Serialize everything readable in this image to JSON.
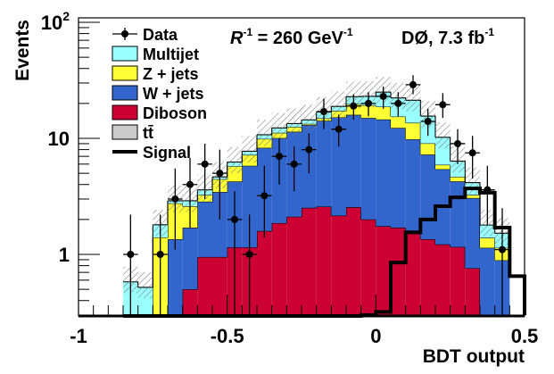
{
  "chart_data": {
    "type": "bar",
    "histogram": "stacked",
    "title": "",
    "annotation_left": {
      "symbol": "R",
      "sup": "-1",
      "text": " = 260 GeV",
      "text_sup": "-1"
    },
    "annotation_right": {
      "text": "DØ, 7.3 fb",
      "sup": "-1"
    },
    "xlabel": "BDT output",
    "ylabel": "Events",
    "xlim": [
      -1,
      0.5
    ],
    "ylim": [
      0.3,
      100
    ],
    "yscale": "log",
    "xticks": [
      "-1",
      "-0.5",
      "0",
      "0.5"
    ],
    "xtick_values": [
      -1,
      -0.5,
      0,
      0.5
    ],
    "yticks": [
      {
        "value": 1,
        "label": "1"
      },
      {
        "value": 10,
        "label": "10"
      },
      {
        "value": 100,
        "label": "10",
        "sup": "2"
      }
    ],
    "legend_placement": "top-left",
    "legend": [
      {
        "name": "Data",
        "style": "marker"
      },
      {
        "name": "Multijet",
        "color": "#99ffff"
      },
      {
        "name": "Z + jets",
        "color": "#ffff33"
      },
      {
        "name": "W + jets",
        "color": "#3366cc"
      },
      {
        "name": "Diboson",
        "color": "#cc0033"
      },
      {
        "name": "tt̄",
        "color": "#cccccc"
      },
      {
        "name": "Signal",
        "style": "line"
      }
    ],
    "bin_edges": [
      -0.85,
      -0.8,
      -0.75,
      -0.7,
      -0.65,
      -0.6,
      -0.55,
      -0.5,
      -0.45,
      -0.4,
      -0.35,
      -0.3,
      -0.25,
      -0.2,
      -0.15,
      -0.1,
      -0.05,
      0.0,
      0.05,
      0.1,
      0.15,
      0.2,
      0.25,
      0.3,
      0.35,
      0.4,
      0.45
    ],
    "series": [
      {
        "name": "tt̄",
        "color": "#cccccc",
        "values": [
          0,
          0,
          0,
          0,
          0,
          0,
          0,
          0,
          0,
          0.04,
          0.01,
          0.01,
          0.27,
          0.13,
          0.06,
          0.2,
          0.1,
          0.05,
          0.1,
          0.06,
          0.05,
          0.02,
          0.01,
          0.01,
          0.01,
          0.01
        ]
      },
      {
        "name": "Diboson",
        "color": "#cc0033",
        "values": [
          0,
          0,
          0,
          0.3,
          0.5,
          0.95,
          0.95,
          1.15,
          1.15,
          1.55,
          1.85,
          2.1,
          2.25,
          2.45,
          2.1,
          2.35,
          1.9,
          1.7,
          1.6,
          1.45,
          1.3,
          1.2,
          1.15,
          0.75,
          0.28,
          0.28
        ]
      },
      {
        "name": "W + jets",
        "color": "#3366cc",
        "values": [
          0,
          0,
          0.3,
          1.05,
          1.2,
          1.9,
          2.5,
          3.1,
          4.65,
          6.7,
          8.2,
          9.3,
          10.5,
          11.6,
          13.0,
          13.4,
          13.0,
          12.8,
          10.6,
          8.3,
          5.9,
          4.2,
          3.1,
          2.3,
          0.85,
          0.6
        ]
      },
      {
        "name": "Z + jets",
        "color": "#ffff33",
        "values": [
          0,
          0.25,
          1.1,
          1.4,
          0.9,
          0.4,
          1.0,
          1.5,
          1.4,
          1.6,
          1.1,
          1.1,
          0.3,
          0.7,
          2.1,
          3.8,
          4.3,
          4.2,
          3.1,
          3.8,
          1.8,
          0.5,
          0.4,
          0.2,
          0.25,
          0.25
        ]
      },
      {
        "name": "Multijet",
        "color": "#99ffff",
        "values": [
          0.58,
          0.27,
          0.4,
          0.15,
          0.3,
          0.35,
          0.2,
          0.5,
          0.55,
          0.85,
          1.15,
          0.9,
          1.1,
          2.0,
          1.6,
          3.1,
          3.7,
          6.3,
          6.9,
          7.7,
          6.5,
          4.3,
          1.7,
          0.9,
          0.4,
          0.38
        ]
      }
    ],
    "signal": {
      "name": "Signal",
      "values": [
        0,
        0,
        0,
        0,
        0,
        0,
        0,
        0,
        0,
        0,
        0,
        0,
        0,
        0,
        0,
        0,
        0.2,
        0.32,
        0.85,
        1.55,
        2.0,
        2.6,
        3.1,
        3.7,
        3.4,
        1.7,
        0.65,
        0.3
      ]
    },
    "signal_bin_edges": [
      -0.85,
      -0.8,
      -0.75,
      -0.7,
      -0.65,
      -0.6,
      -0.55,
      -0.5,
      -0.45,
      -0.4,
      -0.35,
      -0.3,
      -0.25,
      -0.2,
      -0.15,
      -0.1,
      -0.05,
      0.0,
      0.05,
      0.1,
      0.15,
      0.2,
      0.25,
      0.3,
      0.35,
      0.4,
      0.45,
      0.5
    ],
    "data_points": [
      {
        "x": -0.825,
        "y": 1.0,
        "ylo": 0.3,
        "yhi": 2.2
      },
      {
        "x": -0.725,
        "y": 1.0,
        "ylo": 0.3,
        "yhi": 2.2
      },
      {
        "x": -0.675,
        "y": 3.0,
        "ylo": 1.1,
        "yhi": 5.5
      },
      {
        "x": -0.625,
        "y": 4.0,
        "ylo": 1.7,
        "yhi": 6.8
      },
      {
        "x": -0.575,
        "y": 6.0,
        "ylo": 3.0,
        "yhi": 9.0
      },
      {
        "x": -0.525,
        "y": 5.0,
        "ylo": 2.0,
        "yhi": 8.0
      },
      {
        "x": -0.475,
        "y": 2.0,
        "ylo": 0.3,
        "yhi": 3.5
      },
      {
        "x": -0.425,
        "y": 1.0,
        "ylo": 0.3,
        "yhi": 2.2
      },
      {
        "x": -0.375,
        "y": 3.2,
        "ylo": 1.4,
        "yhi": 5.8
      },
      {
        "x": -0.325,
        "y": 7.0,
        "ylo": 4.0,
        "yhi": 10.0
      },
      {
        "x": -0.275,
        "y": 6.0,
        "ylo": 3.5,
        "yhi": 8.5
      },
      {
        "x": -0.225,
        "y": 8.0,
        "ylo": 5.0,
        "yhi": 11.0
      },
      {
        "x": -0.175,
        "y": 17.0,
        "ylo": 12.0,
        "yhi": 22.0
      },
      {
        "x": -0.125,
        "y": 12.0,
        "ylo": 8.5,
        "yhi": 16.0
      },
      {
        "x": -0.075,
        "y": 19.0,
        "ylo": 14.5,
        "yhi": 24.0
      },
      {
        "x": -0.025,
        "y": 20.0,
        "ylo": 15.5,
        "yhi": 25.0
      },
      {
        "x": 0.025,
        "y": 23.0,
        "ylo": 18.0,
        "yhi": 28.0
      },
      {
        "x": 0.075,
        "y": 20.0,
        "ylo": 15.5,
        "yhi": 25.0
      },
      {
        "x": 0.125,
        "y": 29.0,
        "ylo": 24.0,
        "yhi": 35.0
      },
      {
        "x": 0.175,
        "y": 14.0,
        "ylo": 10.5,
        "yhi": 18.0
      },
      {
        "x": 0.225,
        "y": 19.5,
        "ylo": 15.0,
        "yhi": 24.5
      },
      {
        "x": 0.275,
        "y": 9.0,
        "ylo": 6.0,
        "yhi": 12.0
      },
      {
        "x": 0.325,
        "y": 7.5,
        "ylo": 4.5,
        "yhi": 10.5
      },
      {
        "x": 0.375,
        "y": 3.6,
        "ylo": 1.8,
        "yhi": 5.8
      },
      {
        "x": 0.425,
        "y": 1.1,
        "ylo": 0.3,
        "yhi": 2.5
      }
    ],
    "uncertainty_band": {
      "style": "hatched",
      "color": "#777777",
      "relative_up": 0.35,
      "relative_down": 0.2
    }
  }
}
